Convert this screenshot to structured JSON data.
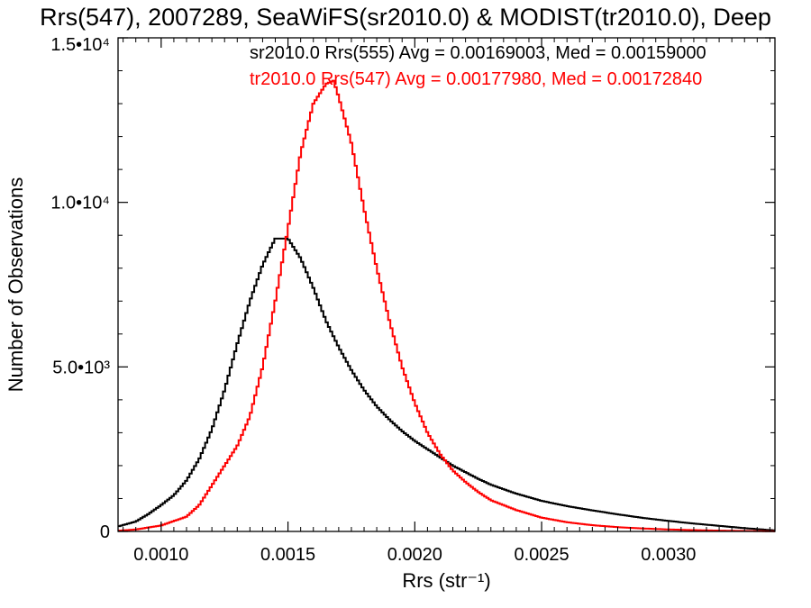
{
  "chart_data": {
    "type": "line",
    "title": "Rrs(547), 2007289, SeaWiFS(sr2010.0) & MODIST(tr2010.0), Deep",
    "xlabel": "Rrs (str⁻¹)",
    "ylabel": "Number of Observations",
    "xlim": [
      0.00083,
      0.00342
    ],
    "ylim": [
      0,
      15000
    ],
    "x_ticks": [
      {
        "value": 0.001,
        "label": "0.0010"
      },
      {
        "value": 0.0015,
        "label": "0.0015"
      },
      {
        "value": 0.002,
        "label": "0.0020"
      },
      {
        "value": 0.0025,
        "label": "0.0025"
      },
      {
        "value": 0.003,
        "label": "0.0030"
      }
    ],
    "y_ticks": [
      {
        "value": 0,
        "label": "0"
      },
      {
        "value": 5000,
        "label": "5.0•10³"
      },
      {
        "value": 10000,
        "label": "1.0•10⁴"
      },
      {
        "value": 15000,
        "label": "1.5•10⁴"
      }
    ],
    "grid": false,
    "series": [
      {
        "name": "sr2010.0 Rrs(555) Avg = 0.00169003, Med = 0.00159000",
        "color": "#000000",
        "x": [
          0.00083,
          0.0009,
          0.00095,
          0.001,
          0.00105,
          0.0011,
          0.00115,
          0.0012,
          0.00125,
          0.0013,
          0.00135,
          0.0014,
          0.00145,
          0.0015,
          0.00155,
          0.0016,
          0.00165,
          0.0017,
          0.00175,
          0.0018,
          0.00185,
          0.0019,
          0.00195,
          0.002,
          0.00205,
          0.0021,
          0.00215,
          0.0022,
          0.00225,
          0.0023,
          0.0024,
          0.0025,
          0.0026,
          0.0027,
          0.0028,
          0.0029,
          0.003,
          0.0031,
          0.0032,
          0.0033,
          0.00342
        ],
        "values": [
          150,
          300,
          530,
          800,
          1100,
          1550,
          2200,
          3100,
          4300,
          5700,
          7000,
          8100,
          8900,
          8900,
          8300,
          7400,
          6400,
          5600,
          4900,
          4300,
          3800,
          3400,
          3050,
          2750,
          2500,
          2250,
          2000,
          1800,
          1600,
          1420,
          1150,
          930,
          770,
          640,
          520,
          410,
          320,
          240,
          170,
          100,
          30
        ]
      },
      {
        "name": "tr2010.0 Rrs(547) Avg = 0.00177980, Med = 0.00172840",
        "color": "#ff0000",
        "x": [
          0.00083,
          0.0009,
          0.001,
          0.0011,
          0.00115,
          0.0012,
          0.00125,
          0.0013,
          0.00135,
          0.0014,
          0.00145,
          0.0015,
          0.00155,
          0.0016,
          0.00165,
          0.00168,
          0.0017,
          0.00175,
          0.0018,
          0.00185,
          0.0019,
          0.00195,
          0.002,
          0.00205,
          0.0021,
          0.00215,
          0.0022,
          0.00225,
          0.0023,
          0.0024,
          0.0025,
          0.0026,
          0.0027,
          0.0028,
          0.0029,
          0.003,
          0.0031,
          0.0032,
          0.0033,
          0.00342
        ],
        "values": [
          20,
          60,
          180,
          450,
          800,
          1400,
          2000,
          2600,
          3500,
          5000,
          7000,
          9200,
          11500,
          13000,
          13600,
          13700,
          13200,
          11800,
          9800,
          8000,
          6400,
          5000,
          3900,
          3000,
          2350,
          1850,
          1500,
          1200,
          950,
          650,
          420,
          280,
          190,
          130,
          90,
          60,
          40,
          25,
          15,
          5
        ]
      }
    ]
  }
}
